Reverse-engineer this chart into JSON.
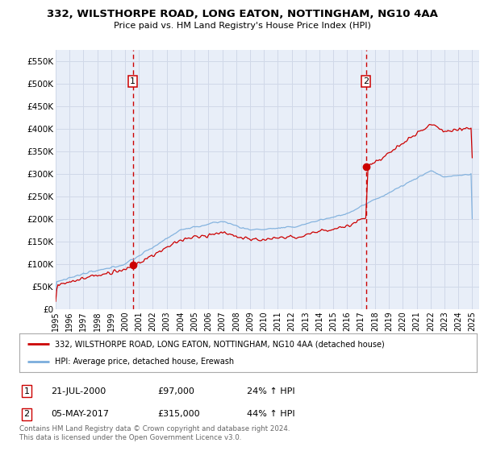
{
  "title_line1": "332, WILSTHORPE ROAD, LONG EATON, NOTTINGHAM, NG10 4AA",
  "title_line2": "Price paid vs. HM Land Registry's House Price Index (HPI)",
  "ylim": [
    0,
    575000
  ],
  "yticks": [
    0,
    50000,
    100000,
    150000,
    200000,
    250000,
    300000,
    350000,
    400000,
    450000,
    500000,
    550000
  ],
  "ytick_labels": [
    "£0",
    "£50K",
    "£100K",
    "£150K",
    "£200K",
    "£250K",
    "£300K",
    "£350K",
    "£400K",
    "£450K",
    "£500K",
    "£550K"
  ],
  "xlim_start": 1995.0,
  "xlim_end": 2025.5,
  "xtick_years": [
    1995,
    1996,
    1997,
    1998,
    1999,
    2000,
    2001,
    2002,
    2003,
    2004,
    2005,
    2006,
    2007,
    2008,
    2009,
    2010,
    2011,
    2012,
    2013,
    2014,
    2015,
    2016,
    2017,
    2018,
    2019,
    2020,
    2021,
    2022,
    2023,
    2024,
    2025
  ],
  "hpi_color": "#7aaddc",
  "price_color": "#cc0000",
  "vline_color": "#cc0000",
  "grid_color": "#d0d8e8",
  "bg_plot_color": "#e8eef8",
  "sale1_x": 2000.55,
  "sale1_y": 97000,
  "sale2_x": 2017.35,
  "sale2_y": 315000,
  "legend_line1": "332, WILSTHORPE ROAD, LONG EATON, NOTTINGHAM, NG10 4AA (detached house)",
  "legend_line2": "HPI: Average price, detached house, Erewash",
  "note1_label": "1",
  "note1_date": "21-JUL-2000",
  "note1_price": "£97,000",
  "note1_hpi": "24% ↑ HPI",
  "note2_label": "2",
  "note2_date": "05-MAY-2017",
  "note2_price": "£315,000",
  "note2_hpi": "44% ↑ HPI",
  "copyright": "Contains HM Land Registry data © Crown copyright and database right 2024.\nThis data is licensed under the Open Government Licence v3.0."
}
